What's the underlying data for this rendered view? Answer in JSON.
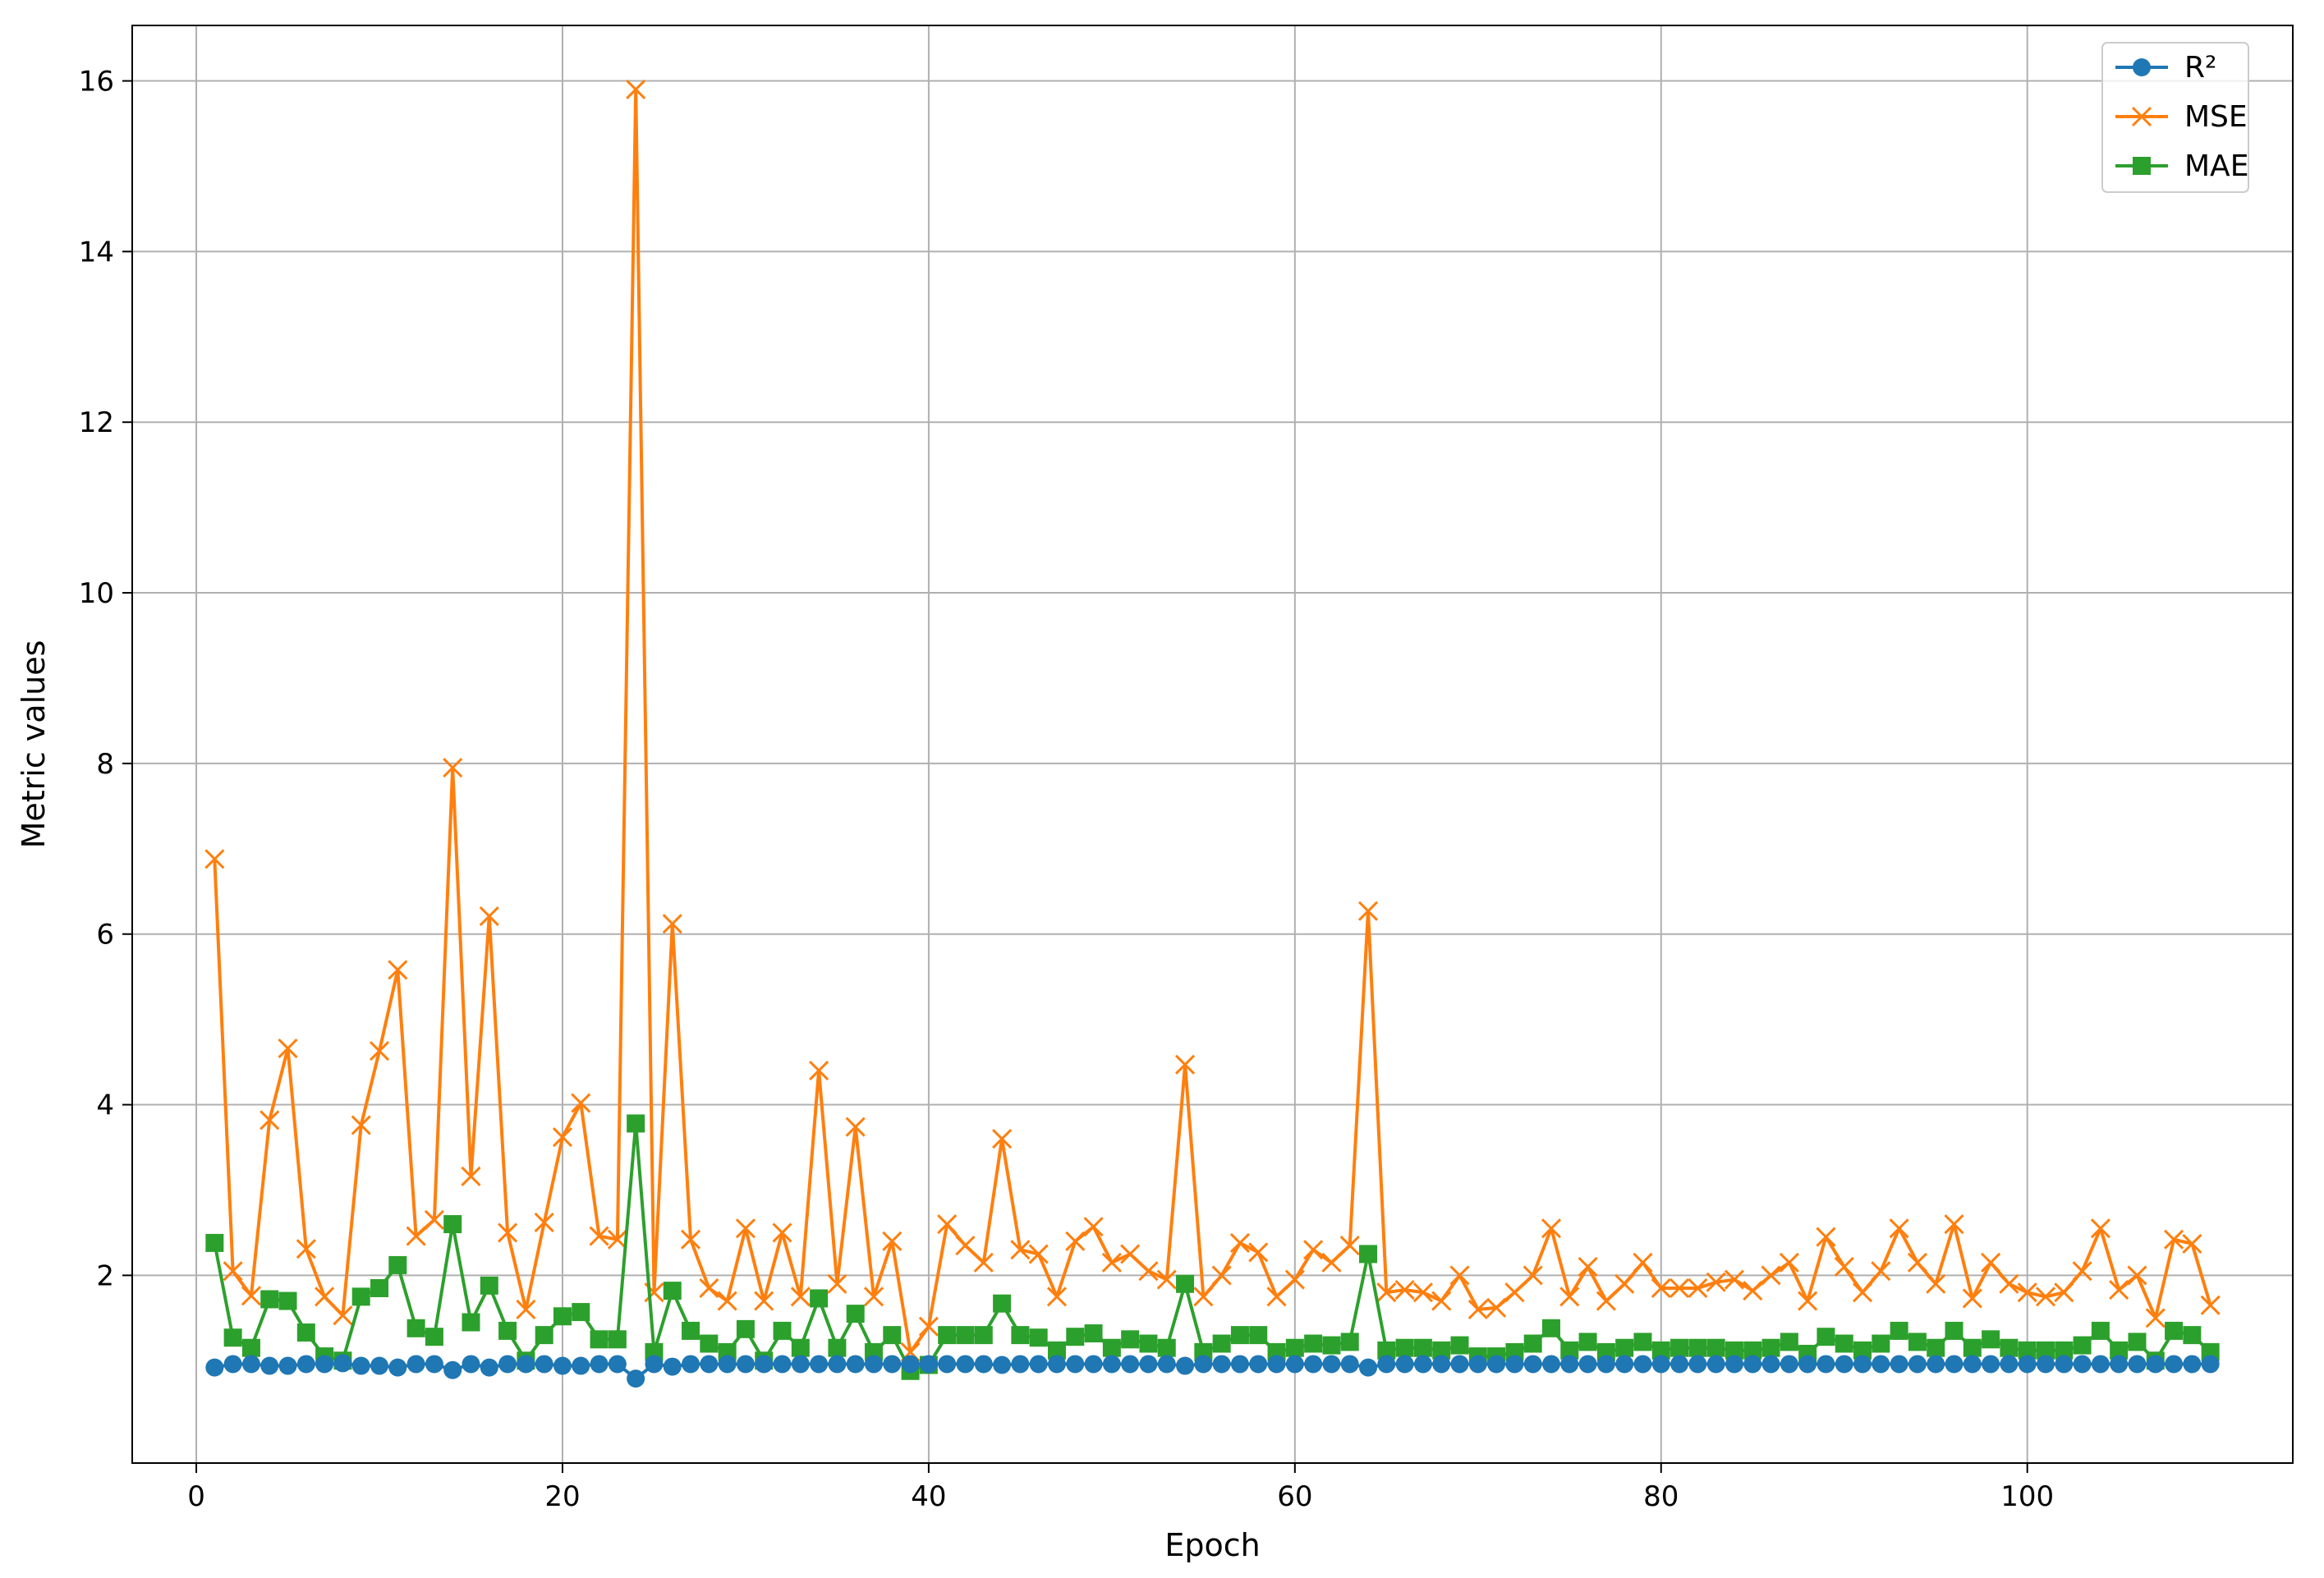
{
  "chart_data": {
    "type": "line",
    "title": "",
    "xlabel": "Epoch",
    "ylabel": "Metric values",
    "xlim": [
      -3.5,
      114.5
    ],
    "ylim": [
      -0.2,
      16.65
    ],
    "xticks": [
      0,
      20,
      40,
      60,
      80,
      100
    ],
    "yticks": [
      2,
      4,
      6,
      8,
      10,
      12,
      14,
      16
    ],
    "grid": true,
    "legend": "top-right",
    "x": [
      1,
      2,
      3,
      4,
      5,
      6,
      7,
      8,
      9,
      10,
      11,
      12,
      13,
      14,
      15,
      16,
      17,
      18,
      19,
      20,
      21,
      22,
      23,
      24,
      25,
      26,
      27,
      28,
      29,
      30,
      31,
      32,
      33,
      34,
      35,
      36,
      37,
      38,
      39,
      40,
      41,
      42,
      43,
      44,
      45,
      46,
      47,
      48,
      49,
      50,
      51,
      52,
      53,
      54,
      55,
      56,
      57,
      58,
      59,
      60,
      61,
      62,
      63,
      64,
      65,
      66,
      67,
      68,
      69,
      70,
      71,
      72,
      73,
      74,
      75,
      76,
      77,
      78,
      79,
      80,
      81,
      82,
      83,
      84,
      85,
      86,
      87,
      88,
      89,
      90,
      91,
      92,
      93,
      94,
      95,
      96,
      97,
      98,
      99,
      100,
      101,
      102,
      103,
      104,
      105,
      106,
      107,
      108,
      109,
      110
    ],
    "series": [
      {
        "name": "R²",
        "color": "#1f77b4",
        "marker": "circle",
        "values": [
          0.92,
          0.96,
          0.96,
          0.94,
          0.94,
          0.96,
          0.96,
          0.97,
          0.94,
          0.94,
          0.92,
          0.96,
          0.96,
          0.89,
          0.96,
          0.92,
          0.96,
          0.96,
          0.96,
          0.94,
          0.94,
          0.96,
          0.96,
          0.79,
          0.96,
          0.93,
          0.96,
          0.96,
          0.96,
          0.96,
          0.96,
          0.96,
          0.96,
          0.96,
          0.96,
          0.96,
          0.96,
          0.96,
          0.96,
          0.96,
          0.96,
          0.96,
          0.96,
          0.95,
          0.96,
          0.96,
          0.96,
          0.96,
          0.96,
          0.96,
          0.96,
          0.96,
          0.96,
          0.94,
          0.96,
          0.96,
          0.96,
          0.96,
          0.96,
          0.96,
          0.96,
          0.96,
          0.96,
          0.92,
          0.96,
          0.96,
          0.96,
          0.96,
          0.96,
          0.96,
          0.96,
          0.96,
          0.96,
          0.96,
          0.96,
          0.96,
          0.96,
          0.96,
          0.96,
          0.96,
          0.96,
          0.96,
          0.96,
          0.96,
          0.96,
          0.96,
          0.96,
          0.96,
          0.96,
          0.96,
          0.96,
          0.96,
          0.96,
          0.96,
          0.96,
          0.96,
          0.96,
          0.96,
          0.96,
          0.96,
          0.96,
          0.96,
          0.96,
          0.96,
          0.96,
          0.96,
          0.96,
          0.96,
          0.96,
          0.96
        ]
      },
      {
        "name": "MSE",
        "color": "#ff7f0e",
        "marker": "x",
        "values": [
          6.88,
          2.05,
          1.76,
          3.82,
          4.66,
          2.31,
          1.75,
          1.53,
          3.76,
          4.63,
          5.58,
          2.46,
          2.65,
          7.95,
          3.16,
          6.21,
          2.5,
          1.6,
          2.62,
          3.62,
          4.02,
          2.46,
          2.42,
          15.9,
          1.8,
          6.12,
          2.42,
          1.85,
          1.7,
          2.55,
          1.7,
          2.5,
          1.75,
          4.4,
          1.9,
          3.74,
          1.75,
          2.4,
          1.1,
          1.4,
          2.6,
          2.35,
          2.15,
          3.6,
          2.3,
          2.25,
          1.75,
          2.4,
          2.57,
          2.15,
          2.25,
          2.05,
          1.95,
          4.47,
          1.75,
          2.0,
          2.38,
          2.27,
          1.75,
          1.95,
          2.3,
          2.15,
          2.35,
          6.27,
          1.8,
          1.83,
          1.8,
          1.7,
          2.0,
          1.6,
          1.62,
          1.8,
          2.0,
          2.55,
          1.75,
          2.1,
          1.7,
          1.9,
          2.15,
          1.85,
          1.85,
          1.85,
          1.92,
          1.95,
          1.82,
          2.0,
          2.15,
          1.7,
          2.45,
          2.1,
          1.8,
          2.05,
          2.55,
          2.15,
          1.9,
          2.6,
          1.73,
          2.15,
          1.9,
          1.8,
          1.75,
          1.8,
          2.05,
          2.55,
          1.83,
          2.0,
          1.5,
          2.42,
          2.37,
          1.65
        ]
      },
      {
        "name": "MAE",
        "color": "#2ca02c",
        "marker": "square",
        "values": [
          2.38,
          1.27,
          1.15,
          1.72,
          1.7,
          1.33,
          1.05,
          1.0,
          1.75,
          1.85,
          2.12,
          1.38,
          1.28,
          2.6,
          1.45,
          1.88,
          1.35,
          1.0,
          1.3,
          1.52,
          1.57,
          1.25,
          1.25,
          3.78,
          1.1,
          1.82,
          1.35,
          1.2,
          1.1,
          1.37,
          1.0,
          1.35,
          1.15,
          1.73,
          1.15,
          1.55,
          1.1,
          1.3,
          0.88,
          0.95,
          1.3,
          1.3,
          1.3,
          1.67,
          1.3,
          1.27,
          1.12,
          1.28,
          1.32,
          1.15,
          1.25,
          1.2,
          1.15,
          1.9,
          1.1,
          1.2,
          1.3,
          1.3,
          1.1,
          1.15,
          1.2,
          1.18,
          1.22,
          2.25,
          1.12,
          1.15,
          1.15,
          1.12,
          1.18,
          1.05,
          1.05,
          1.1,
          1.2,
          1.38,
          1.12,
          1.22,
          1.1,
          1.15,
          1.22,
          1.12,
          1.15,
          1.15,
          1.15,
          1.12,
          1.12,
          1.15,
          1.22,
          1.08,
          1.28,
          1.2,
          1.12,
          1.2,
          1.35,
          1.22,
          1.15,
          1.35,
          1.15,
          1.25,
          1.15,
          1.12,
          1.12,
          1.12,
          1.18,
          1.35,
          1.12,
          1.22,
          1.0,
          1.35,
          1.3,
          1.1
        ]
      }
    ]
  }
}
